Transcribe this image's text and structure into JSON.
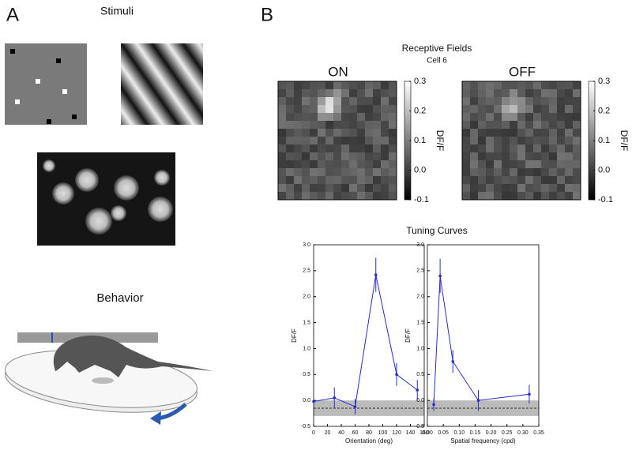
{
  "panels": {
    "a_letter": "A",
    "b_letter": "B",
    "stimuli": "Stimuli",
    "behavior": "Behavior"
  },
  "receptive_fields": {
    "title": "Receptive Fields",
    "cell": "Cell 6",
    "maps": [
      {
        "label": "ON"
      },
      {
        "label": "OFF"
      }
    ],
    "colorbar": {
      "label": "DF/F",
      "lim": [
        -0.1,
        0.3
      ],
      "ticks": [
        -0.1,
        {
          "value": 0,
          "label": "0.0"
        },
        0.1,
        0.2,
        0.3
      ]
    }
  },
  "tuning_title": "Tuning Curves",
  "chart_data": [
    {
      "type": "line",
      "xlabel": "Orientation (deg)",
      "ylabel": "DF/F",
      "xlim": [
        0,
        160
      ],
      "xticks": [
        0,
        20,
        40,
        60,
        80,
        100,
        120,
        140,
        160
      ],
      "ylim": [
        -0.5,
        3.0
      ],
      "yticks": [
        -0.5,
        {
          "value": 0,
          "label": "0.0"
        },
        0.5,
        {
          "value": 1,
          "label": "1.0"
        },
        1.5,
        {
          "value": 2,
          "label": "2.0"
        },
        2.5,
        {
          "value": 3,
          "label": "3.0"
        }
      ],
      "band": [
        -0.3,
        0
      ],
      "dashed_line": -0.15,
      "series": [
        {
          "color": "#2b2bc8",
          "x": [
            0,
            30,
            60,
            90,
            120,
            150
          ],
          "values": [
            -0.02,
            0.05,
            -0.12,
            2.42,
            0.5,
            0.2
          ],
          "errors": [
            0,
            0.2,
            0.15,
            0.33,
            0.22,
            0.2
          ]
        }
      ]
    },
    {
      "type": "line",
      "xlabel": "Spatial frequency (cpd)",
      "ylabel": "DF/F",
      "xlim": [
        0,
        0.35
      ],
      "xticks": [
        {
          "value": 0,
          "label": "0.00"
        },
        0.05,
        {
          "value": 0.1,
          "label": "0.10"
        },
        0.15,
        {
          "value": 0.2,
          "label": "0.20"
        },
        0.25,
        {
          "value": 0.3,
          "label": "0.30"
        },
        0.35
      ],
      "ylim": [
        -0.5,
        3.0
      ],
      "yticks": [
        -0.5,
        {
          "value": 0,
          "label": "0.0"
        },
        0.5,
        {
          "value": 1,
          "label": "1.0"
        },
        1.5,
        {
          "value": 2,
          "label": "2.0"
        },
        2.5,
        {
          "value": 3,
          "label": "3.0"
        }
      ],
      "band": [
        -0.3,
        0
      ],
      "dashed_line": -0.15,
      "series": [
        {
          "color": "#2b2bc8",
          "x": [
            0.02,
            0.04,
            0.08,
            0.16,
            0.32
          ],
          "values": [
            -0.08,
            2.4,
            0.75,
            0.0,
            0.12
          ],
          "errors": [
            0.12,
            0.33,
            0.22,
            0.2,
            0.18
          ]
        }
      ]
    }
  ]
}
